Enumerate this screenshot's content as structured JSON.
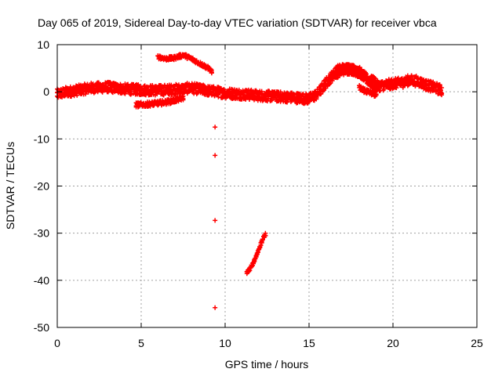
{
  "chart_data": {
    "type": "scatter",
    "title": "Day 065 of 2019, Sidereal Day-to-day VTEC variation (SDTVAR) for receiver vbca",
    "xlabel": "GPS time / hours",
    "ylabel": "SDTVAR / TECUs",
    "xlim": [
      0,
      25
    ],
    "ylim": [
      -50,
      10
    ],
    "xticks": [
      0,
      5,
      10,
      15,
      20,
      25
    ],
    "yticks": [
      -50,
      -40,
      -30,
      -20,
      -10,
      0,
      10
    ],
    "grid": true,
    "marker": "+",
    "color": "#ff0000",
    "series": [
      {
        "name": "main band",
        "band_halfwidth": 1.1,
        "x": [
          0.0,
          0.5,
          1.0,
          2.0,
          3.0,
          4.0,
          5.0,
          6.0,
          7.0,
          8.0,
          9.0,
          9.5,
          10.0,
          11.0,
          12.0,
          13.0,
          14.0,
          15.0,
          15.5,
          16.0,
          16.5,
          17.0,
          17.5,
          18.0,
          18.5,
          19.0,
          19.5,
          20.0,
          20.5,
          21.0,
          21.5,
          22.0,
          22.5,
          22.9
        ],
        "y": [
          -0.5,
          -0.1,
          0.2,
          0.8,
          1.0,
          0.6,
          0.4,
          0.3,
          0.5,
          0.8,
          0.2,
          0.0,
          -0.3,
          -0.5,
          -0.8,
          -1.0,
          -1.2,
          -1.5,
          -0.5,
          1.8,
          3.8,
          4.6,
          4.8,
          4.2,
          2.5,
          1.2,
          1.4,
          1.7,
          1.9,
          2.5,
          2.2,
          1.4,
          0.9,
          0.3
        ]
      },
      {
        "name": "upper branch 17-19h",
        "band_halfwidth": 1.0,
        "x": [
          16.6,
          17.0,
          17.5,
          18.0,
          18.5,
          19.0
        ],
        "y": [
          4.5,
          5.0,
          4.8,
          4.0,
          2.8,
          2.0
        ]
      },
      {
        "name": "lower branch 17-19h",
        "band_halfwidth": 0.6,
        "x": [
          18.0,
          18.5,
          19.0
        ],
        "y": [
          0.8,
          0.0,
          -0.5
        ]
      },
      {
        "name": "segment 6-9.2h",
        "band_halfwidth": 0.4,
        "x": [
          6.0,
          6.5,
          7.0,
          7.5,
          8.0,
          8.5,
          9.0,
          9.2
        ],
        "y": [
          7.4,
          7.0,
          7.2,
          7.8,
          7.0,
          6.0,
          5.0,
          4.3
        ]
      },
      {
        "name": "segment 4.7-7.5h",
        "band_halfwidth": 0.5,
        "x": [
          4.7,
          5.2,
          5.8,
          6.3,
          6.8,
          7.2,
          7.5
        ],
        "y": [
          -2.8,
          -2.7,
          -2.5,
          -2.3,
          -2.0,
          -1.6,
          -1.3
        ]
      },
      {
        "name": "isolated points",
        "band_halfwidth": 0.0,
        "x": [
          9.4,
          9.4,
          9.4,
          9.4
        ],
        "y": [
          -7.5,
          -13.5,
          -27.3,
          -45.8
        ]
      },
      {
        "name": "segment 11.3-12.4h",
        "band_halfwidth": 0.3,
        "x": [
          11.3,
          11.5,
          11.7,
          11.9,
          12.1,
          12.3,
          12.4
        ],
        "y": [
          -38.3,
          -37.5,
          -36.2,
          -34.5,
          -32.5,
          -30.8,
          -30.3
        ]
      }
    ]
  }
}
